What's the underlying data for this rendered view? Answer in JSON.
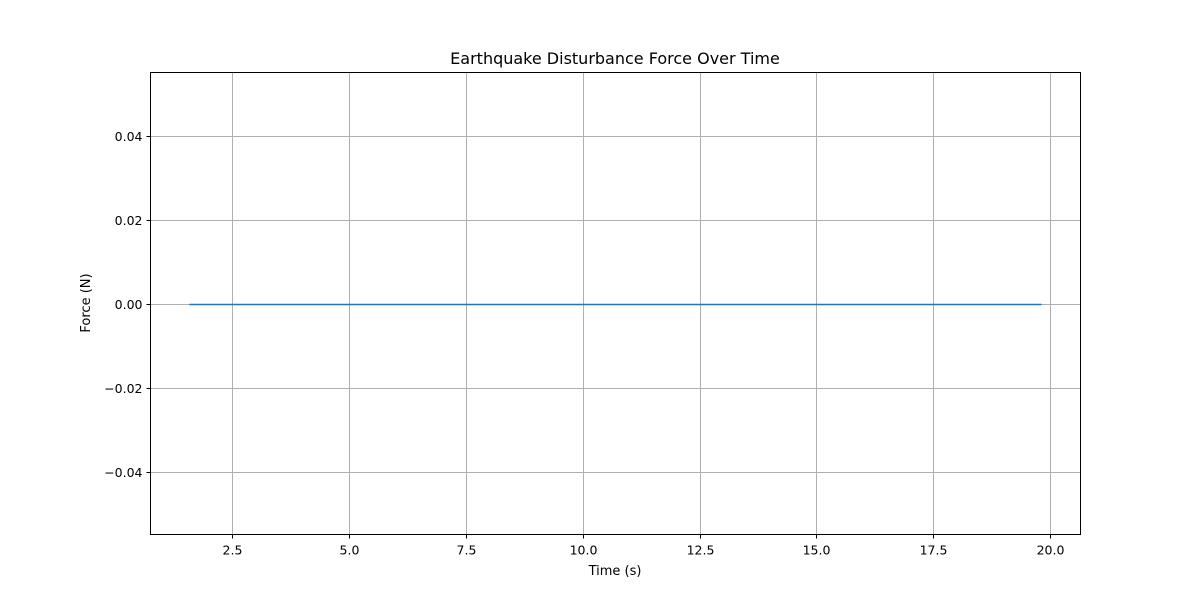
{
  "chart_data": {
    "type": "line",
    "title": "Earthquake Disturbance Force Over Time",
    "xlabel": "Time (s)",
    "ylabel": "Force (N)",
    "xlim": [
      0.75,
      20.65
    ],
    "ylim": [
      -0.055,
      0.055
    ],
    "x_ticks": [
      2.5,
      5.0,
      7.5,
      10.0,
      12.5,
      15.0,
      17.5,
      20.0
    ],
    "x_tick_labels": [
      "2.5",
      "5.0",
      "7.5",
      "10.0",
      "12.5",
      "15.0",
      "17.5",
      "20.0"
    ],
    "y_ticks": [
      0.04,
      0.02,
      0.0,
      -0.02,
      -0.04
    ],
    "y_tick_labels": [
      "0.04",
      "0.02",
      "0.00",
      "−0.02",
      "−0.04"
    ],
    "grid": true,
    "series": [
      {
        "color": "#1f77b4",
        "x": [
          1.6,
          19.8
        ],
        "y": [
          0.0,
          0.0
        ]
      }
    ]
  }
}
